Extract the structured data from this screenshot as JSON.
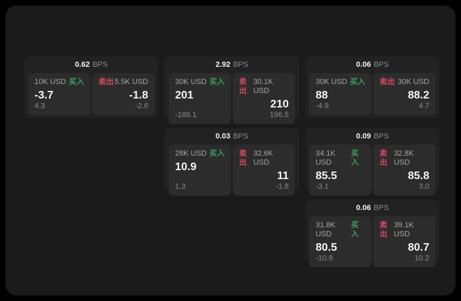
{
  "colors": {
    "page_bg": "#000000",
    "panel_bg": "#1b1b1b",
    "card_bg": "#222222",
    "tile_bg": "#2c2c2c",
    "buy_accent": "#3f9e5f",
    "sell_accent": "#d4495e",
    "primary_text": "#f5f5f5",
    "muted_text": "#8b8b8b",
    "label_text": "#a6a6a6"
  },
  "cards": [
    {
      "grid": {
        "row": 1,
        "col": 1
      },
      "bps_value": "0.62",
      "bps_unit": "BPS",
      "buy": {
        "size": "10K USD",
        "side_label": "买入",
        "price": "-3.7",
        "delta": "4.3"
      },
      "sell": {
        "side_label": "卖出",
        "size": "5.5K USD",
        "price": "-1.8",
        "delta": "-2.6"
      }
    },
    {
      "grid": {
        "row": 1,
        "col": 2
      },
      "bps_value": "2.92",
      "bps_unit": "BPS",
      "buy": {
        "size": "30K USD",
        "side_label": "买入",
        "price": "201",
        "delta": "-188.1"
      },
      "sell": {
        "side_label": "卖出",
        "size": "30.1K USD",
        "price": "210",
        "delta": "196.5"
      }
    },
    {
      "grid": {
        "row": 1,
        "col": 3
      },
      "bps_value": "0.06",
      "bps_unit": "BPS",
      "buy": {
        "size": "30K USD",
        "side_label": "买入",
        "price": "88",
        "delta": "-4.9"
      },
      "sell": {
        "side_label": "卖出",
        "size": "30K USD",
        "price": "88.2",
        "delta": "4.7"
      }
    },
    {
      "grid": {
        "row": 2,
        "col": 2
      },
      "bps_value": "0.03",
      "bps_unit": "BPS",
      "buy": {
        "size": "28K USD",
        "side_label": "买入",
        "price": "10.9",
        "delta": "1.3"
      },
      "sell": {
        "side_label": "卖出",
        "size": "32.6K USD",
        "price": "11",
        "delta": "-1.8"
      }
    },
    {
      "grid": {
        "row": 2,
        "col": 3
      },
      "bps_value": "0.09",
      "bps_unit": "BPS",
      "buy": {
        "size": "34.1K USD",
        "side_label": "买入",
        "price": "85.5",
        "delta": "-3.1"
      },
      "sell": {
        "side_label": "卖出",
        "size": "32.8K USD",
        "price": "85.8",
        "delta": "3.0"
      }
    },
    {
      "grid": {
        "row": 3,
        "col": 3
      },
      "bps_value": "0.06",
      "bps_unit": "BPS",
      "buy": {
        "size": "31.8K USD",
        "side_label": "买入",
        "price": "80.5",
        "delta": "-10.8"
      },
      "sell": {
        "side_label": "卖出",
        "size": "39.1K USD",
        "price": "80.7",
        "delta": "10.2"
      }
    }
  ]
}
